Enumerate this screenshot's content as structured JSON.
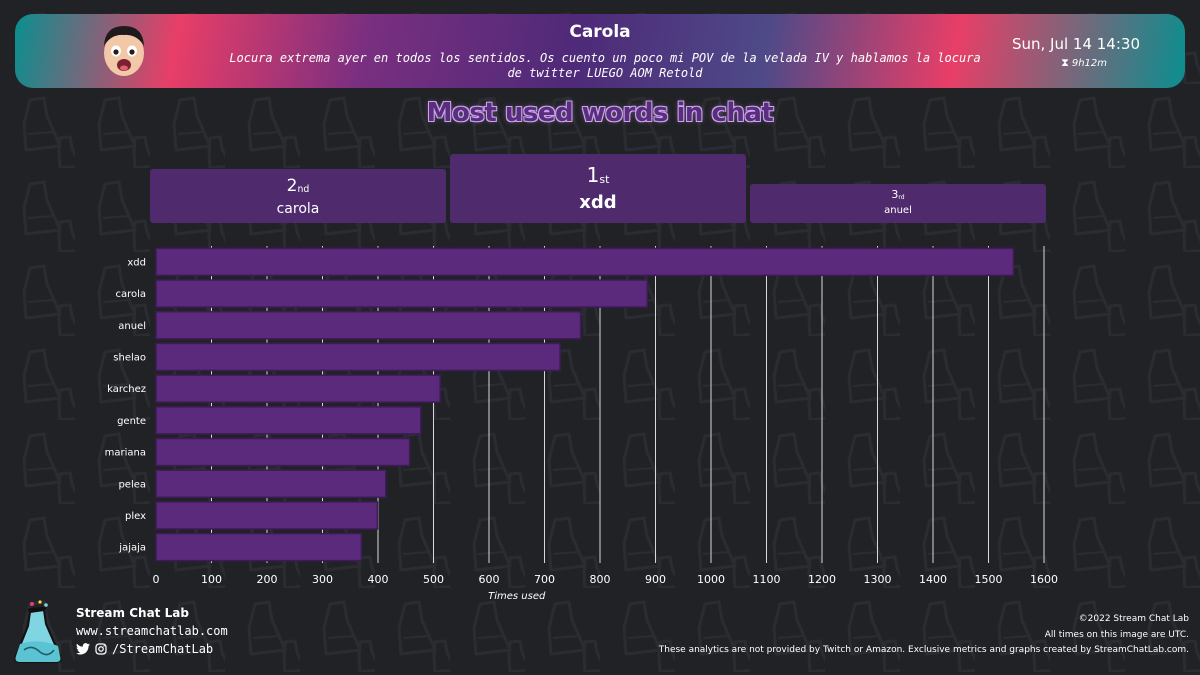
{
  "header": {
    "channel_name": "Carola",
    "stream_title": "Locura extrema ayer en todos los sentidos. Os cuento un poco mi POV de la velada IV y hablamos la locura de twitter LUEGO AOM Retold",
    "date": "Sun, Jul 14 14:30",
    "duration": "9h12m",
    "avatar_icon": "avatar-face",
    "duration_icon": "hourglass-icon"
  },
  "podium": {
    "first": {
      "rank": "1",
      "suffix": "st",
      "word": "xdd"
    },
    "second": {
      "rank": "2",
      "suffix": "nd",
      "word": "carola"
    },
    "third": {
      "rank": "3",
      "suffix": "rd",
      "word": "anuel"
    }
  },
  "chart_data": {
    "type": "bar",
    "orientation": "horizontal",
    "title": "Most used words in chat",
    "xlabel": "Times used",
    "ylabel": "",
    "xlim": [
      0,
      1600
    ],
    "xticks": [
      0,
      100,
      200,
      300,
      400,
      500,
      600,
      700,
      800,
      900,
      1000,
      1100,
      1200,
      1300,
      1400,
      1500,
      1600
    ],
    "grid": "vertical",
    "bar_color": "#5b2a7c",
    "categories": [
      "xdd",
      "carola",
      "anuel",
      "shelao",
      "karchez",
      "gente",
      "mariana",
      "pelea",
      "plex",
      "jajaja"
    ],
    "values": [
      1545,
      885,
      765,
      728,
      512,
      477,
      457,
      414,
      399,
      370
    ]
  },
  "footer": {
    "brand_name": "Stream Chat Lab",
    "brand_url": "www.streamchatlab.com",
    "social_handle": "/StreamChatLab",
    "copyright": "©2022 Stream Chat Lab",
    "timezone_note": "All times on this image are UTC.",
    "disclaimer": "These analytics are not provided by Twitch or Amazon. Exclusive metrics and graphs created by StreamChatLab.com."
  },
  "colors": {
    "background": "#212226",
    "accent_purple": "#5b2a7c",
    "podium": "#4f2b6e",
    "teal": "#0a8f8f",
    "pink": "#e83e67"
  }
}
